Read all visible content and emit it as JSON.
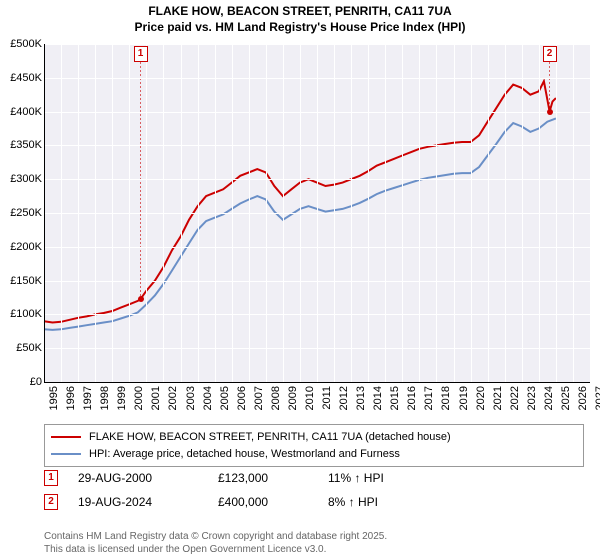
{
  "title_line1": "FLAKE HOW, BEACON STREET, PENRITH, CA11 7UA",
  "title_line2": "Price paid vs. HM Land Registry's House Price Index (HPI)",
  "chart": {
    "type": "line",
    "background_color": "#f0eff5",
    "grid_color_major": "#ffffff",
    "x_min": 1995,
    "x_max": 2027,
    "x_tick_step": 1,
    "y_min": 0,
    "y_max": 500000,
    "y_tick_step": 50000,
    "y_tick_prefix": "£",
    "y_tick_suffix": "K",
    "series": [
      {
        "name": "FLAKE HOW, BEACON STREET, PENRITH, CA11 7UA (detached house)",
        "color": "#cc0000",
        "line_width": 2,
        "data": [
          [
            1995.0,
            90000
          ],
          [
            1995.5,
            88000
          ],
          [
            1996.0,
            89000
          ],
          [
            1996.5,
            92000
          ],
          [
            1997.0,
            95000
          ],
          [
            1997.5,
            97000
          ],
          [
            1998.0,
            100000
          ],
          [
            1998.5,
            102000
          ],
          [
            1999.0,
            105000
          ],
          [
            1999.5,
            110000
          ],
          [
            2000.0,
            115000
          ],
          [
            2000.5,
            120000
          ],
          [
            2000.66,
            123000
          ],
          [
            2001.0,
            135000
          ],
          [
            2001.5,
            150000
          ],
          [
            2002.0,
            170000
          ],
          [
            2002.5,
            195000
          ],
          [
            2003.0,
            215000
          ],
          [
            2003.5,
            240000
          ],
          [
            2004.0,
            260000
          ],
          [
            2004.5,
            275000
          ],
          [
            2005.0,
            280000
          ],
          [
            2005.5,
            285000
          ],
          [
            2006.0,
            295000
          ],
          [
            2006.5,
            305000
          ],
          [
            2007.0,
            310000
          ],
          [
            2007.5,
            315000
          ],
          [
            2008.0,
            310000
          ],
          [
            2008.5,
            290000
          ],
          [
            2009.0,
            275000
          ],
          [
            2009.5,
            285000
          ],
          [
            2010.0,
            295000
          ],
          [
            2010.5,
            300000
          ],
          [
            2011.0,
            295000
          ],
          [
            2011.5,
            290000
          ],
          [
            2012.0,
            292000
          ],
          [
            2012.5,
            295000
          ],
          [
            2013.0,
            300000
          ],
          [
            2013.5,
            305000
          ],
          [
            2014.0,
            312000
          ],
          [
            2014.5,
            320000
          ],
          [
            2015.0,
            325000
          ],
          [
            2015.5,
            330000
          ],
          [
            2016.0,
            335000
          ],
          [
            2016.5,
            340000
          ],
          [
            2017.0,
            345000
          ],
          [
            2017.5,
            348000
          ],
          [
            2018.0,
            350000
          ],
          [
            2018.5,
            352000
          ],
          [
            2019.0,
            354000
          ],
          [
            2019.5,
            355000
          ],
          [
            2020.0,
            355000
          ],
          [
            2020.5,
            365000
          ],
          [
            2021.0,
            385000
          ],
          [
            2021.5,
            405000
          ],
          [
            2022.0,
            425000
          ],
          [
            2022.5,
            440000
          ],
          [
            2023.0,
            435000
          ],
          [
            2023.5,
            425000
          ],
          [
            2024.0,
            430000
          ],
          [
            2024.3,
            445000
          ],
          [
            2024.63,
            400000
          ],
          [
            2024.8,
            415000
          ],
          [
            2025.0,
            420000
          ]
        ]
      },
      {
        "name": "HPI: Average price, detached house, Westmorland and Furness",
        "color": "#6a8fc7",
        "line_width": 2,
        "data": [
          [
            1995.0,
            78000
          ],
          [
            1995.5,
            77000
          ],
          [
            1996.0,
            78000
          ],
          [
            1996.5,
            80000
          ],
          [
            1997.0,
            82000
          ],
          [
            1997.5,
            84000
          ],
          [
            1998.0,
            86000
          ],
          [
            1998.5,
            88000
          ],
          [
            1999.0,
            90000
          ],
          [
            1999.5,
            94000
          ],
          [
            2000.0,
            98000
          ],
          [
            2000.5,
            103000
          ],
          [
            2001.0,
            115000
          ],
          [
            2001.5,
            128000
          ],
          [
            2002.0,
            145000
          ],
          [
            2002.5,
            165000
          ],
          [
            2003.0,
            185000
          ],
          [
            2003.5,
            205000
          ],
          [
            2004.0,
            225000
          ],
          [
            2004.5,
            238000
          ],
          [
            2005.0,
            243000
          ],
          [
            2005.5,
            248000
          ],
          [
            2006.0,
            256000
          ],
          [
            2006.5,
            264000
          ],
          [
            2007.0,
            270000
          ],
          [
            2007.5,
            275000
          ],
          [
            2008.0,
            270000
          ],
          [
            2008.5,
            252000
          ],
          [
            2009.0,
            240000
          ],
          [
            2009.5,
            248000
          ],
          [
            2010.0,
            256000
          ],
          [
            2010.5,
            260000
          ],
          [
            2011.0,
            256000
          ],
          [
            2011.5,
            252000
          ],
          [
            2012.0,
            254000
          ],
          [
            2012.5,
            256000
          ],
          [
            2013.0,
            260000
          ],
          [
            2013.5,
            265000
          ],
          [
            2014.0,
            271000
          ],
          [
            2014.5,
            278000
          ],
          [
            2015.0,
            283000
          ],
          [
            2015.5,
            287000
          ],
          [
            2016.0,
            291000
          ],
          [
            2016.5,
            295000
          ],
          [
            2017.0,
            299000
          ],
          [
            2017.5,
            302000
          ],
          [
            2018.0,
            304000
          ],
          [
            2018.5,
            306000
          ],
          [
            2019.0,
            308000
          ],
          [
            2019.5,
            309000
          ],
          [
            2020.0,
            309000
          ],
          [
            2020.5,
            318000
          ],
          [
            2021.0,
            335000
          ],
          [
            2021.5,
            352000
          ],
          [
            2022.0,
            370000
          ],
          [
            2022.5,
            383000
          ],
          [
            2023.0,
            378000
          ],
          [
            2023.5,
            370000
          ],
          [
            2024.0,
            375000
          ],
          [
            2024.5,
            385000
          ],
          [
            2025.0,
            390000
          ]
        ]
      }
    ],
    "markers": [
      {
        "label": "1",
        "x": 2000.66,
        "y": 123000,
        "color": "#cc0000"
      },
      {
        "label": "2",
        "x": 2024.63,
        "y": 400000,
        "color": "#cc0000"
      }
    ]
  },
  "legend": {
    "border_color": "#999999",
    "items": [
      {
        "color": "#cc0000",
        "label": "FLAKE HOW, BEACON STREET, PENRITH, CA11 7UA (detached house)"
      },
      {
        "color": "#6a8fc7",
        "label": "HPI: Average price, detached house, Westmorland and Furness"
      }
    ]
  },
  "transactions": [
    {
      "marker": "1",
      "date": "29-AUG-2000",
      "price": "£123,000",
      "pct": "11% ↑ HPI"
    },
    {
      "marker": "2",
      "date": "19-AUG-2024",
      "price": "£400,000",
      "pct": "8% ↑ HPI"
    }
  ],
  "footer_line1": "Contains HM Land Registry data © Crown copyright and database right 2025.",
  "footer_line2": "This data is licensed under the Open Government Licence v3.0."
}
